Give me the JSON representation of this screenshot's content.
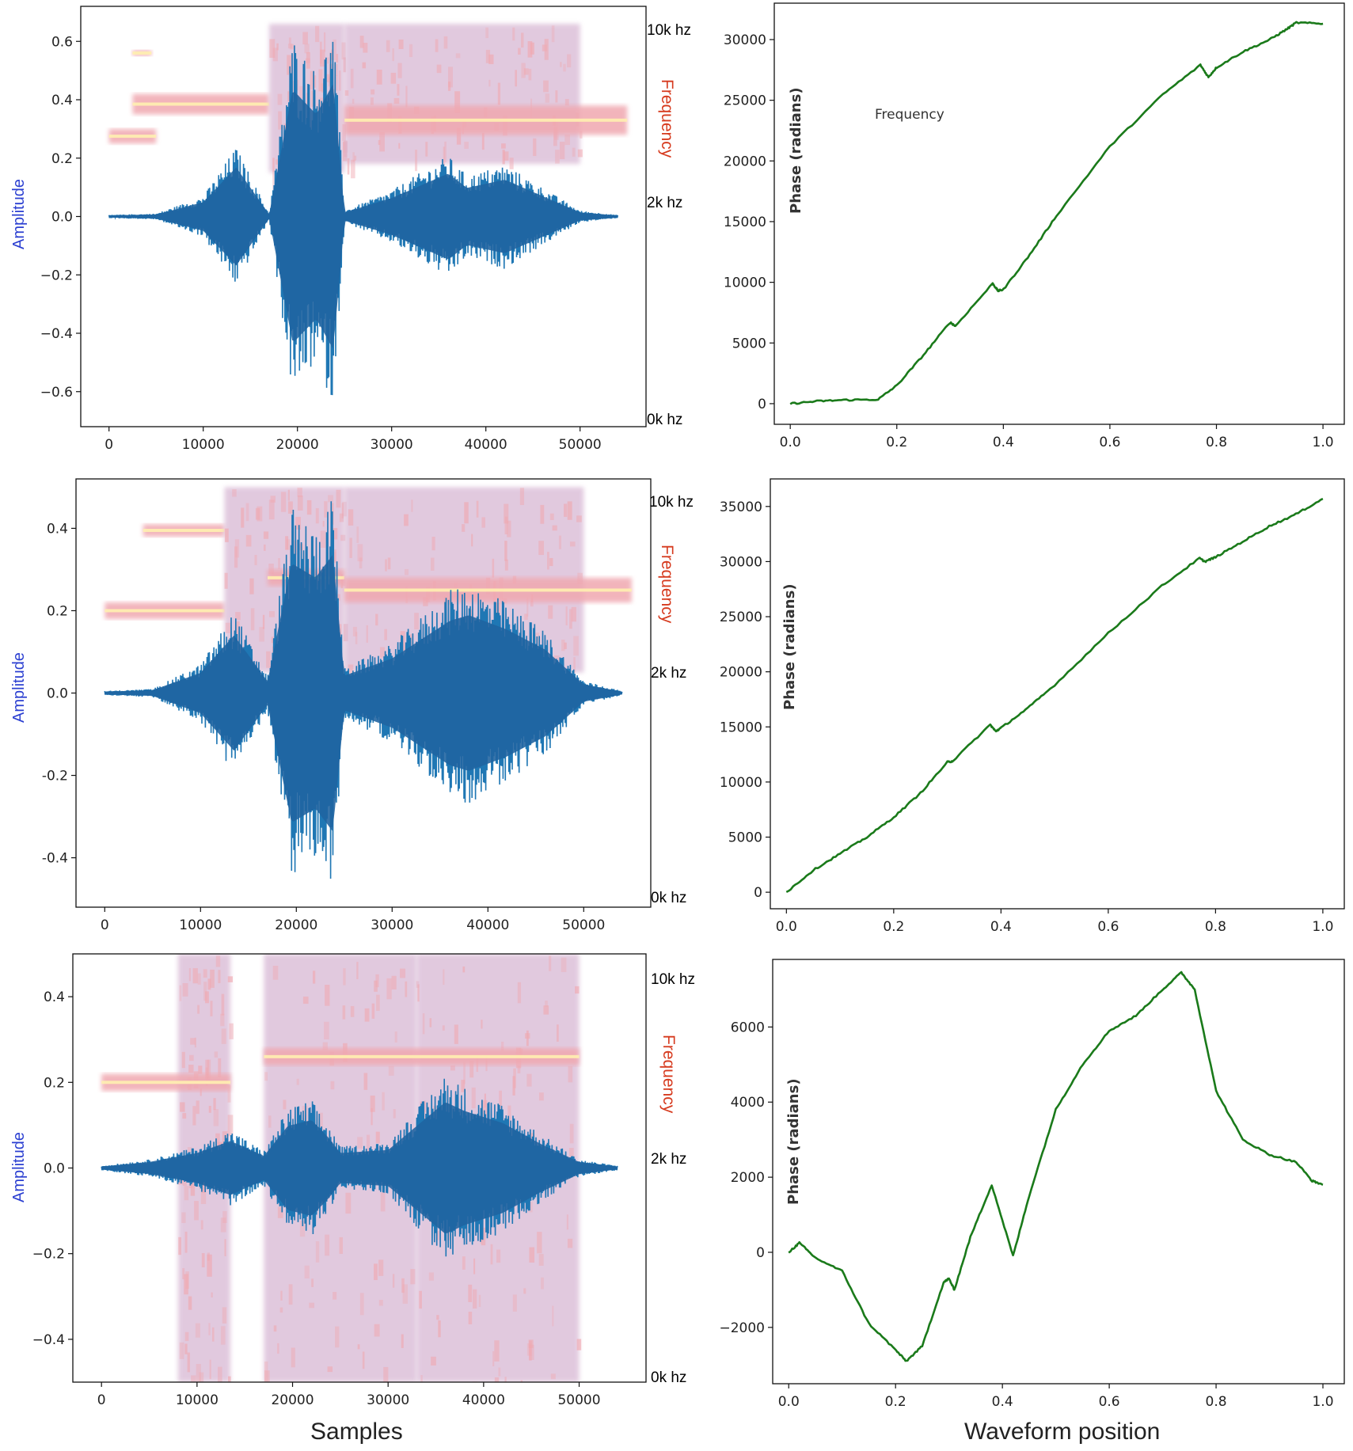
{
  "colors": {
    "waveform": "#1f77b4",
    "waveform_dark": "#22346e",
    "phase_line": "#1a7a1a",
    "spectrogram_low": "#d8b8d4",
    "spectrogram_mid": "#f0a8b0",
    "spectrogram_high": "#fff0b0",
    "amplitude_label": "#2b3fd1",
    "frequency_label": "#d63a1e"
  },
  "figure": {
    "left_xlabel": "Samples",
    "right_xlabel": "Waveform position",
    "amplitude_label": "Amplitude",
    "frequency_label": "Frequency",
    "phase_label": "Phase (radians)",
    "freq_marks": [
      "10k hz",
      "2k hz",
      "0k hz"
    ],
    "annotation": "Frequency"
  },
  "chart_data": [
    {
      "type": "line",
      "panel": "waveform-1",
      "xlabel": "",
      "ylabel": "Amplitude",
      "xlim": [
        -3000,
        57000
      ],
      "ylim": [
        -0.72,
        0.72
      ],
      "xticks": [
        0,
        10000,
        20000,
        30000,
        40000,
        50000
      ],
      "yticks": [
        0.6,
        0.4,
        0.2,
        0.0,
        -0.2,
        -0.4,
        -0.6
      ],
      "ytick_labels": [
        "0.6",
        "0.4",
        "0.2",
        "0.0",
        "−0.2",
        "−0.4",
        "−0.6"
      ],
      "series": [
        {
          "x": [
            0,
            5000,
            10000,
            13500,
            17000,
            19500,
            22000,
            23800,
            25000,
            30000,
            36000,
            38000,
            42000,
            46000,
            50000,
            54000
          ],
          "envelope": [
            0.005,
            0.01,
            0.07,
            0.24,
            0.01,
            0.62,
            0.5,
            0.65,
            0.02,
            0.09,
            0.21,
            0.14,
            0.18,
            0.1,
            0.02,
            0.005
          ]
        }
      ],
      "spectrogram": {
        "segments": [
          {
            "x": [
              0,
              5000
            ],
            "y": [
              0.25,
              0.3
            ],
            "kind": "band"
          },
          {
            "x": [
              2500,
              17000
            ],
            "y": [
              0.35,
              0.42
            ],
            "kind": "band"
          },
          {
            "x": [
              2500,
              4500
            ],
            "y": [
              0.55,
              0.57
            ],
            "kind": "band"
          },
          {
            "x": [
              17000,
              25000
            ],
            "y": [
              0.15,
              0.66
            ],
            "kind": "block"
          },
          {
            "x": [
              25000,
              50000
            ],
            "y": [
              0.18,
              0.66
            ],
            "kind": "block"
          },
          {
            "x": [
              25000,
              55000
            ],
            "y": [
              0.28,
              0.38
            ],
            "kind": "band"
          }
        ]
      }
    },
    {
      "type": "line",
      "panel": "phase-1",
      "xlabel": "",
      "ylabel": "Phase (radians)",
      "xlim": [
        -0.03,
        1.04
      ],
      "ylim": [
        -1700,
        33000
      ],
      "xticks": [
        0.0,
        0.2,
        0.4,
        0.6,
        0.8,
        1.0
      ],
      "yticks": [
        0,
        5000,
        10000,
        15000,
        20000,
        25000,
        30000
      ],
      "series": [
        {
          "x": [
            0.0,
            0.05,
            0.1,
            0.165,
            0.2,
            0.25,
            0.3,
            0.31,
            0.38,
            0.39,
            0.4,
            0.45,
            0.5,
            0.6,
            0.7,
            0.77,
            0.785,
            0.8,
            0.85,
            0.9,
            0.93,
            0.95,
            1.0
          ],
          "y": [
            0,
            200,
            300,
            350,
            1500,
            4000,
            6700,
            6400,
            9900,
            9300,
            9400,
            12300,
            15500,
            21200,
            25500,
            27900,
            26900,
            27700,
            29000,
            30000,
            30800,
            31400,
            31300
          ]
        }
      ]
    },
    {
      "type": "line",
      "panel": "waveform-2",
      "xlabel": "",
      "ylabel": "Amplitude",
      "xlim": [
        -3000,
        57000
      ],
      "ylim": [
        -0.52,
        0.52
      ],
      "xticks": [
        0,
        10000,
        20000,
        30000,
        40000,
        50000
      ],
      "yticks": [
        0.4,
        0.2,
        0.0,
        -0.2,
        -0.4
      ],
      "ytick_labels": [
        "0.4",
        "0.2",
        "0.0",
        "-0.2",
        "-0.4"
      ],
      "series": [
        {
          "x": [
            0,
            5000,
            10000,
            13500,
            17000,
            19500,
            22000,
            23800,
            25000,
            30000,
            36000,
            38000,
            42000,
            46000,
            50000,
            54000
          ],
          "envelope": [
            0.005,
            0.01,
            0.07,
            0.2,
            0.04,
            0.45,
            0.4,
            0.48,
            0.06,
            0.12,
            0.25,
            0.27,
            0.22,
            0.15,
            0.03,
            0.005
          ]
        }
      ],
      "spectrogram": {
        "segments": [
          {
            "x": [
              0,
              12500
            ],
            "y": [
              0.18,
              0.22
            ],
            "kind": "band"
          },
          {
            "x": [
              4000,
              12500
            ],
            "y": [
              0.38,
              0.41
            ],
            "kind": "band"
          },
          {
            "x": [
              12500,
              25000
            ],
            "y": [
              0.05,
              0.5
            ],
            "kind": "block"
          },
          {
            "x": [
              25000,
              50000
            ],
            "y": [
              0.05,
              0.5
            ],
            "kind": "block"
          },
          {
            "x": [
              17000,
              25000
            ],
            "y": [
              0.26,
              0.3
            ],
            "kind": "band"
          },
          {
            "x": [
              25000,
              55000
            ],
            "y": [
              0.22,
              0.28
            ],
            "kind": "band"
          }
        ]
      }
    },
    {
      "type": "line",
      "panel": "phase-2",
      "xlabel": "",
      "ylabel": "Phase (radians)",
      "xlim": [
        -0.03,
        1.04
      ],
      "ylim": [
        -1500,
        37500
      ],
      "xticks": [
        0.0,
        0.2,
        0.4,
        0.6,
        0.8,
        1.0
      ],
      "yticks": [
        0,
        5000,
        10000,
        15000,
        20000,
        25000,
        30000,
        35000
      ],
      "series": [
        {
          "x": [
            0.0,
            0.05,
            0.1,
            0.15,
            0.2,
            0.25,
            0.3,
            0.31,
            0.38,
            0.39,
            0.4,
            0.45,
            0.5,
            0.6,
            0.7,
            0.77,
            0.78,
            0.8,
            0.85,
            0.9,
            0.95,
            1.0
          ],
          "y": [
            0,
            2000,
            3500,
            5000,
            6800,
            9000,
            11800,
            11900,
            15200,
            14600,
            14900,
            16700,
            18800,
            23500,
            27800,
            30300,
            30000,
            30400,
            31800,
            33200,
            34300,
            35700
          ]
        }
      ]
    },
    {
      "type": "line",
      "panel": "waveform-3",
      "xlabel": "Samples",
      "ylabel": "Amplitude",
      "xlim": [
        -3000,
        57000
      ],
      "ylim": [
        -0.5,
        0.5
      ],
      "xticks": [
        0,
        10000,
        20000,
        30000,
        40000,
        50000
      ],
      "yticks": [
        0.4,
        0.2,
        0.0,
        -0.2,
        -0.4
      ],
      "ytick_labels": [
        "0.4",
        "0.2",
        "0.0",
        "−0.2",
        "−0.4"
      ],
      "series": [
        {
          "x": [
            0,
            5000,
            10000,
            13500,
            17000,
            19500,
            22000,
            23800,
            25000,
            30000,
            36000,
            38000,
            42000,
            46000,
            50000,
            54000
          ],
          "envelope": [
            0.005,
            0.02,
            0.05,
            0.09,
            0.04,
            0.14,
            0.16,
            0.1,
            0.05,
            0.06,
            0.22,
            0.19,
            0.15,
            0.08,
            0.02,
            0.005
          ]
        }
      ],
      "spectrogram": {
        "segments": [
          {
            "x": [
              8000,
              13500
            ],
            "y": [
              -0.5,
              0.5
            ],
            "kind": "block"
          },
          {
            "x": [
              17000,
              33000
            ],
            "y": [
              -0.5,
              0.5
            ],
            "kind": "block"
          },
          {
            "x": [
              33000,
              50000
            ],
            "y": [
              -0.5,
              0.5
            ],
            "kind": "block"
          },
          {
            "x": [
              0,
              13500
            ],
            "y": [
              0.18,
              0.22
            ],
            "kind": "band"
          },
          {
            "x": [
              17000,
              50000
            ],
            "y": [
              0.24,
              0.28
            ],
            "kind": "band"
          }
        ]
      }
    },
    {
      "type": "line",
      "panel": "phase-3",
      "xlabel": "Waveform position",
      "ylabel": "Phase (radians)",
      "xlim": [
        -0.03,
        1.04
      ],
      "ylim": [
        -3500,
        7800
      ],
      "xticks": [
        0.0,
        0.2,
        0.4,
        0.6,
        0.8,
        1.0
      ],
      "yticks": [
        -2000,
        0,
        2000,
        4000,
        6000
      ],
      "ytick_labels": [
        "−2000",
        "0",
        "2000",
        "4000",
        "6000"
      ],
      "series": [
        {
          "x": [
            0.0,
            0.02,
            0.05,
            0.1,
            0.15,
            0.2,
            0.22,
            0.25,
            0.29,
            0.3,
            0.31,
            0.34,
            0.38,
            0.42,
            0.45,
            0.5,
            0.55,
            0.6,
            0.65,
            0.7,
            0.735,
            0.76,
            0.8,
            0.85,
            0.9,
            0.95,
            0.98,
            1.0
          ],
          "y": [
            0,
            250,
            -150,
            -500,
            -1900,
            -2600,
            -2900,
            -2500,
            -800,
            -700,
            -1000,
            400,
            1800,
            -100,
            1500,
            3800,
            5000,
            5900,
            6300,
            7000,
            7450,
            7000,
            4300,
            3000,
            2600,
            2400,
            1900,
            1800
          ]
        }
      ]
    }
  ]
}
